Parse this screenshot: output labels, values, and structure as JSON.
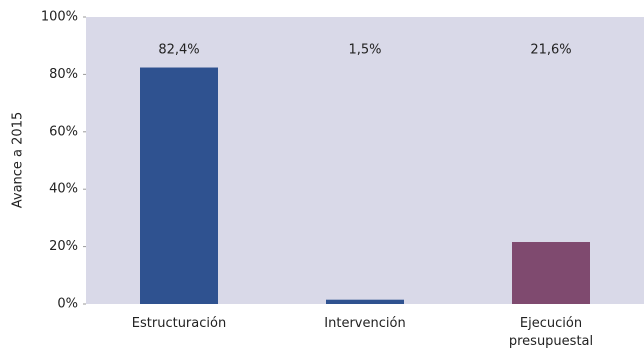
{
  "chart_data": {
    "type": "bar",
    "y_label": "Avance a 2015",
    "categories": [
      "Estructuración",
      "Intervención",
      "Ejecución presupuestal"
    ],
    "values": [
      82.4,
      1.5,
      21.6
    ],
    "value_labels": [
      "82,4%",
      "1,5%",
      "21,6%"
    ],
    "colors": [
      "#2f5290",
      "#2f5290",
      "#7f4a6f"
    ],
    "ylim": [
      0,
      100
    ],
    "yticks": [
      {
        "value": 0,
        "label": "0%"
      },
      {
        "value": 20,
        "label": "20%"
      },
      {
        "value": 40,
        "label": "40%"
      },
      {
        "value": 60,
        "label": "60%"
      },
      {
        "value": 80,
        "label": "80%"
      },
      {
        "value": 100,
        "label": "100%"
      }
    ],
    "plot_background": "#d9d9e8"
  }
}
